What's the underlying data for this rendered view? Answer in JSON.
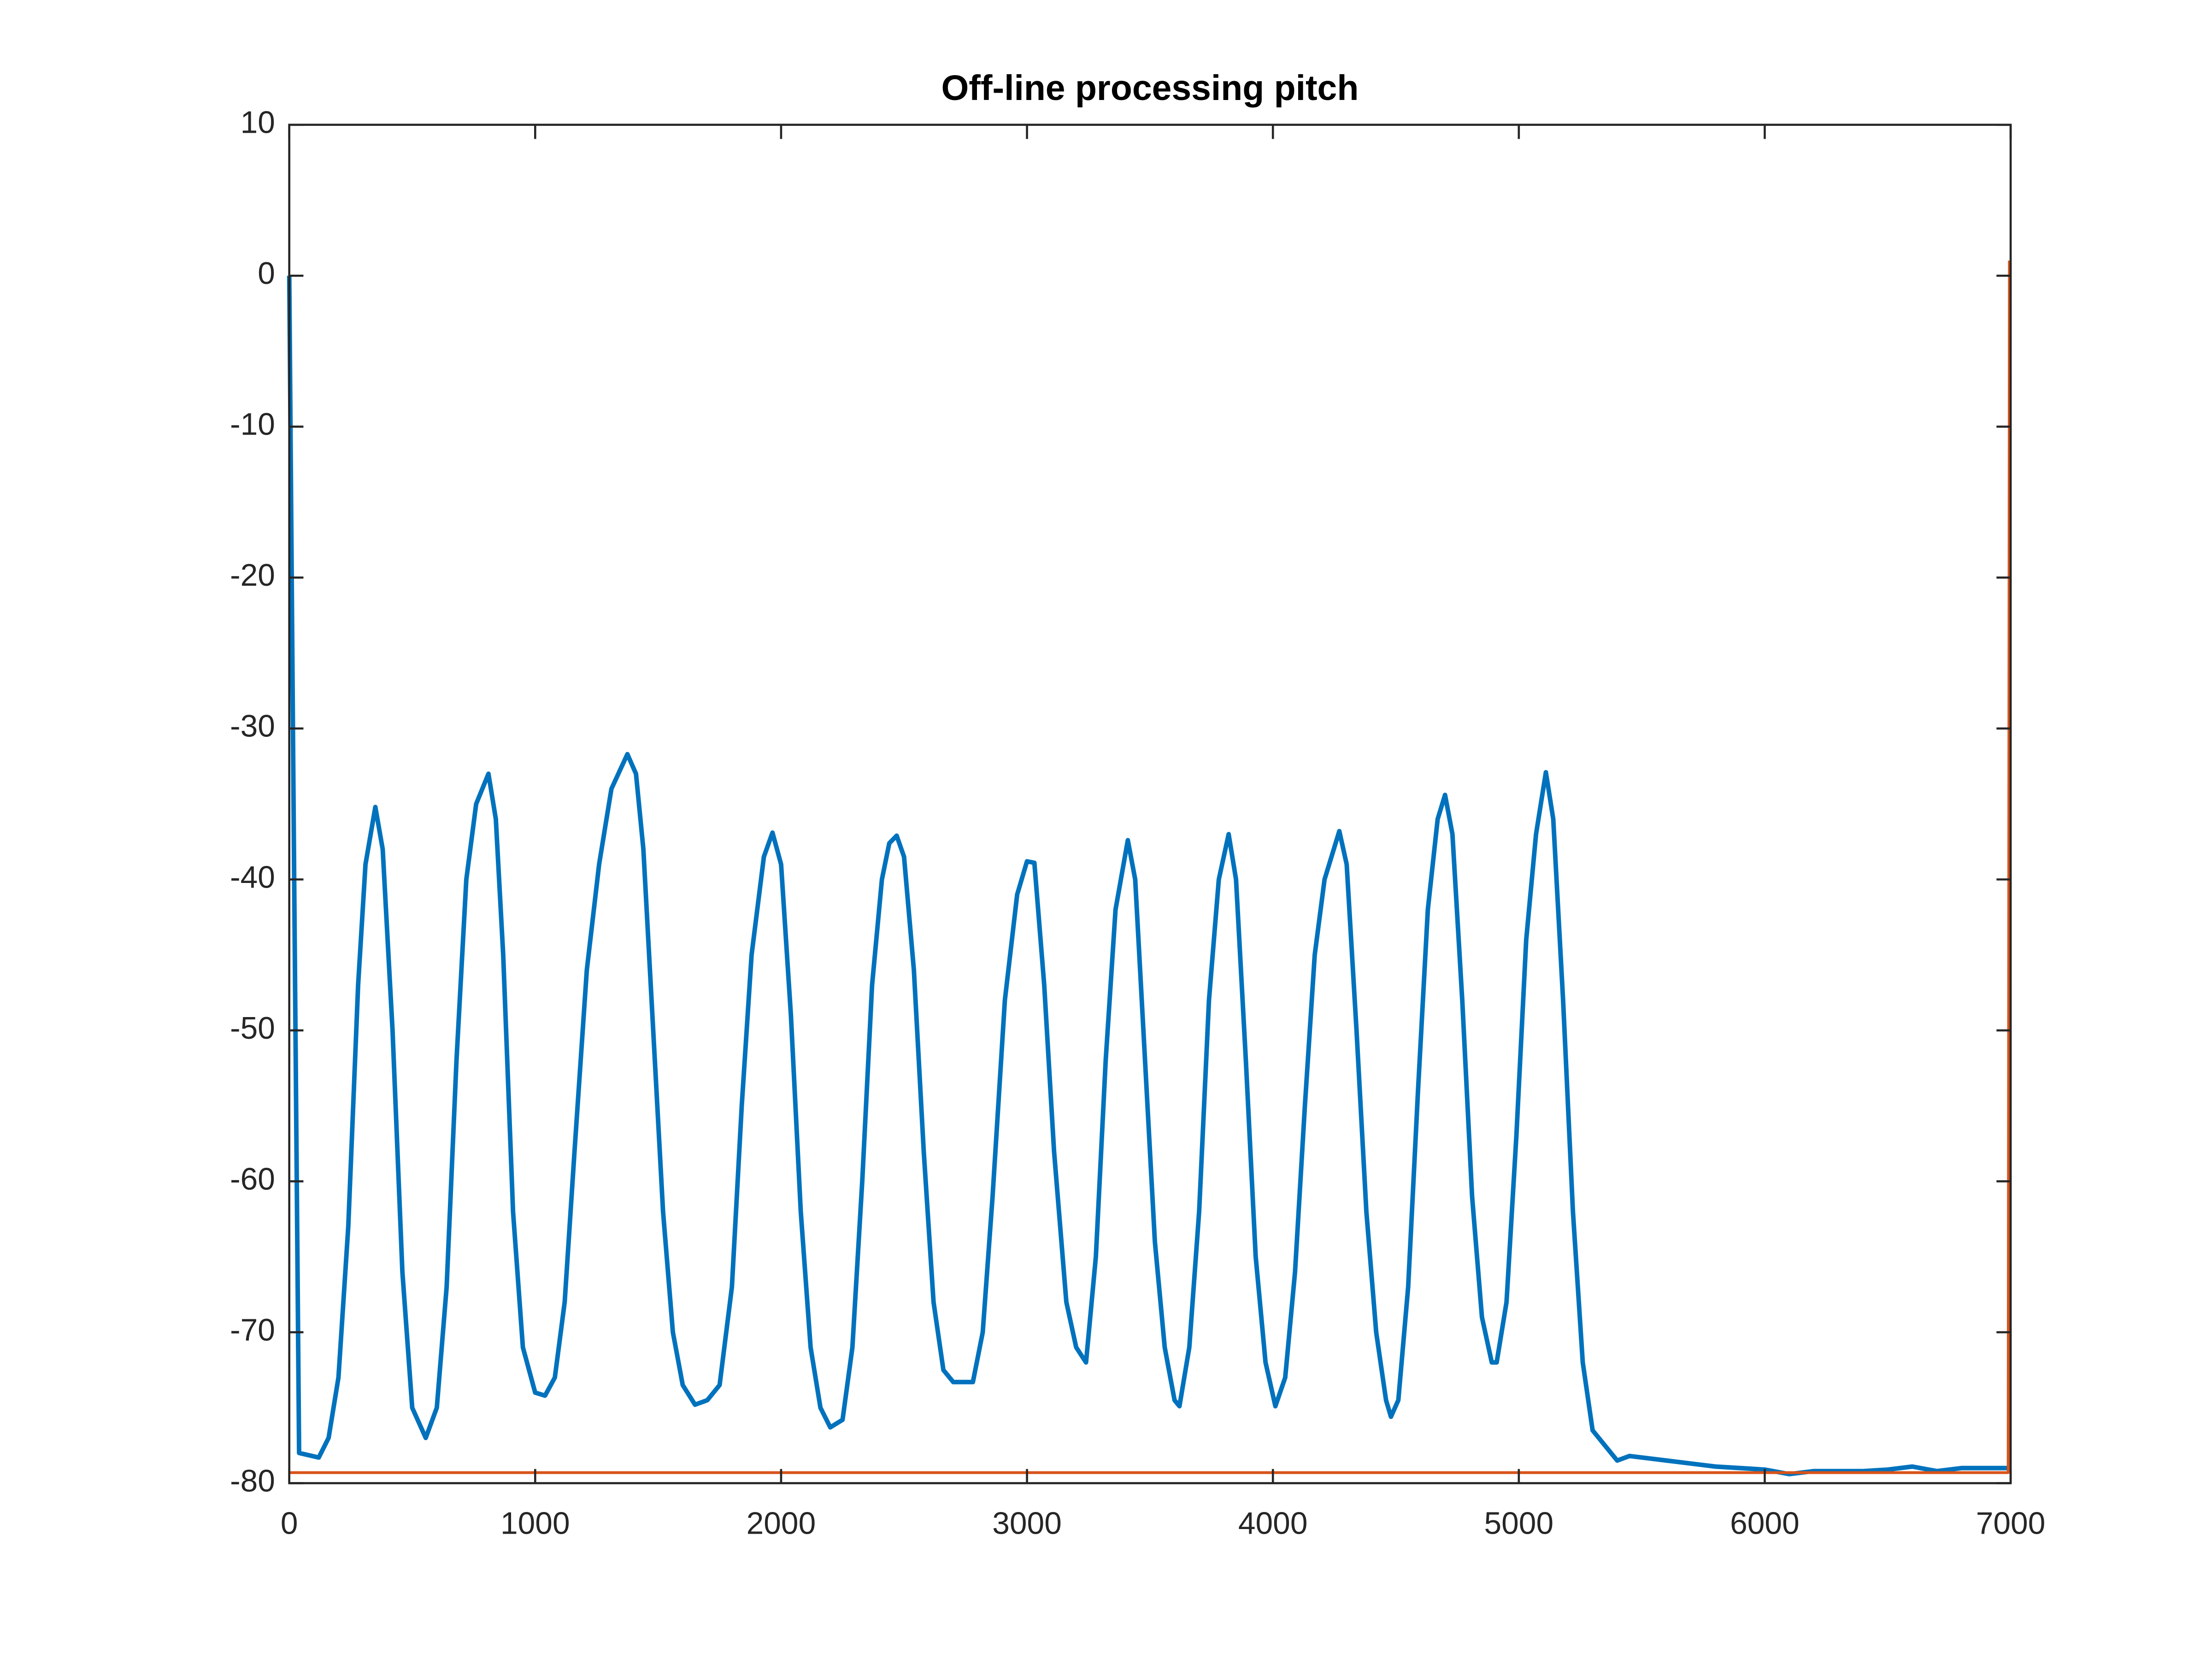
{
  "chart_data": {
    "type": "line",
    "title": "Off-line processing pitch",
    "xlim": [
      0,
      7000
    ],
    "xticks": [
      0,
      1000,
      2000,
      3000,
      4000,
      5000,
      6000,
      7000
    ],
    "ylim": [
      -80,
      10
    ],
    "yticks": [
      -80,
      -70,
      -60,
      -50,
      -40,
      -30,
      -20,
      -10,
      0,
      10
    ],
    "grid": false,
    "series": [
      {
        "color": "#0072bd",
        "x": [
          0,
          20,
          40,
          120,
          160,
          200,
          240,
          280,
          310,
          350,
          380,
          420,
          460,
          500,
          555,
          600,
          640,
          680,
          720,
          760,
          810,
          840,
          870,
          910,
          950,
          1000,
          1040,
          1080,
          1120,
          1160,
          1210,
          1260,
          1310,
          1375,
          1410,
          1440,
          1480,
          1520,
          1560,
          1600,
          1650,
          1700,
          1750,
          1800,
          1840,
          1880,
          1930,
          1965,
          2000,
          2040,
          2080,
          2120,
          2160,
          2200,
          2250,
          2290,
          2330,
          2370,
          2410,
          2440,
          2470,
          2500,
          2540,
          2580,
          2620,
          2660,
          2700,
          2780,
          2820,
          2860,
          2910,
          2960,
          3000,
          3030,
          3070,
          3110,
          3160,
          3200,
          3240,
          3280,
          3320,
          3360,
          3410,
          3440,
          3480,
          3520,
          3560,
          3600,
          3620,
          3660,
          3700,
          3740,
          3780,
          3820,
          3850,
          3890,
          3930,
          3970,
          4010,
          4050,
          4090,
          4130,
          4170,
          4210,
          4270,
          4300,
          4340,
          4380,
          4420,
          4460,
          4480,
          4510,
          4550,
          4590,
          4630,
          4670,
          4700,
          4730,
          4770,
          4810,
          4850,
          4890,
          4910,
          4950,
          4990,
          5030,
          5070,
          5110,
          5140,
          5180,
          5220,
          5260,
          5300,
          5350,
          5400,
          5450,
          5500,
          5600,
          5700,
          5800,
          5900,
          6000,
          6100,
          6200,
          6300,
          6400,
          6500,
          6600,
          6700,
          6800,
          6990
        ],
        "values": [
          0,
          -40,
          -78,
          -78.3,
          -77,
          -73,
          -63,
          -47,
          -39,
          -35.2,
          -38,
          -50,
          -66,
          -75,
          -77,
          -75,
          -67,
          -52,
          -40,
          -35,
          -33,
          -36,
          -45,
          -62,
          -71,
          -74,
          -74.2,
          -73,
          -68,
          -58,
          -46,
          -39,
          -34,
          -31.7,
          -33,
          -38,
          -50,
          -62,
          -70,
          -73.5,
          -74.8,
          -74.5,
          -73.5,
          -67,
          -55,
          -45,
          -38.5,
          -36.9,
          -39,
          -49,
          -62,
          -71,
          -75,
          -76.3,
          -75.8,
          -71,
          -60,
          -47,
          -40,
          -37.6,
          -37.1,
          -38.5,
          -46,
          -58,
          -68,
          -72.5,
          -73.3,
          -73.3,
          -70,
          -61,
          -48,
          -41,
          -38.8,
          -38.9,
          -47,
          -58,
          -68,
          -71,
          -72,
          -65,
          -52,
          -42,
          -37.4,
          -40,
          -52,
          -64,
          -71,
          -74.5,
          -74.9,
          -71,
          -62,
          -48,
          -40,
          -37,
          -40,
          -52,
          -65,
          -72,
          -74.9,
          -73,
          -66,
          -55,
          -45,
          -40,
          -36.8,
          -39,
          -50,
          -62,
          -70,
          -74.5,
          -75.6,
          -74.5,
          -67,
          -54,
          -42,
          -36,
          -34.4,
          -37,
          -48,
          -61,
          -69,
          -72,
          -72,
          -68,
          -57,
          -44,
          -37,
          -32.9,
          -36,
          -48,
          -62,
          -72,
          -76.5,
          -77.5,
          -78.5,
          -78.2,
          -78.3,
          -78.5,
          -78.7,
          -78.9,
          -79,
          -79.1,
          -79.4,
          -79.2,
          -79.2,
          -79.2,
          -79.1,
          -78.9,
          -79.2,
          -79,
          -79
        ]
      },
      {
        "color": "#d95319",
        "x": [
          0,
          6990,
          6995
        ],
        "values": [
          -79.3,
          -79.3,
          1
        ]
      }
    ]
  }
}
